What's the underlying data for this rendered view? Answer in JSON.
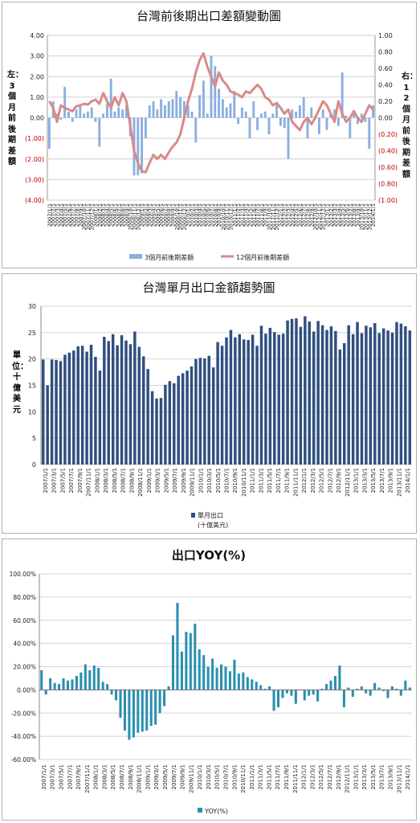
{
  "chart_data": [
    {
      "type": "bar+line",
      "title": "台灣前後期出口差額變動圖",
      "left_axis_label": "左：3個月前後期差額",
      "right_axis_label": "右：12個月前後期差額",
      "left_ylim": [
        -4,
        4
      ],
      "right_ylim": [
        -1,
        1
      ],
      "left_ticks": [
        "4.00",
        "3.00",
        "2.00",
        "1.00",
        "0.00",
        "(1.00)",
        "(2.00)",
        "(3.00)",
        "(4.00)"
      ],
      "right_ticks": [
        "1.00",
        "0.80",
        "0.60",
        "0.40",
        "0.20",
        "0.00",
        "(0.20)",
        "(0.40)",
        "(0.60)",
        "(0.80)",
        "(1.00)"
      ],
      "grid": true,
      "legend_position": "bottom",
      "series": [
        {
          "name": "3個月前後期差額",
          "kind": "bar",
          "color": "#8aaee0",
          "axis": "left",
          "values": [
            -1.5,
            0.8,
            0.2,
            -0.1,
            1.5,
            0.3,
            -0.2,
            0.4,
            0.6,
            0.2,
            0.3,
            0.5,
            -0.2,
            -1.4,
            0.2,
            0.7,
            1.9,
            0.3,
            0.5,
            0.4,
            0.6,
            -0.9,
            -2.8,
            -2.8,
            -2.7,
            -1.0,
            0.6,
            0.8,
            0.4,
            0.9,
            0.6,
            0.8,
            0.9,
            1.3,
            1.0,
            0.8,
            0.6,
            0.3,
            -1.2,
            1.1,
            1.8,
            0.2,
            3.0,
            2.5,
            1.4,
            0.9,
            0.5,
            0.7,
            1.3,
            -0.3,
            0.5,
            0.3,
            -1.0,
            0.8,
            -0.6,
            0.2,
            0.3,
            -0.8,
            0.2,
            0.7,
            -0.4,
            -0.5,
            -2.0,
            0.4,
            0.3,
            0.6,
            1.0,
            -1.0,
            0.5,
            0.1,
            -0.8,
            0.4,
            -0.6,
            0.2,
            0.4,
            -0.4,
            2.2,
            0.1,
            -1.0,
            0.3,
            -0.3,
            0.2,
            -0.2,
            -1.5,
            0.6
          ]
        },
        {
          "name": "12個月前後期差額",
          "kind": "line",
          "color": "#d98a88",
          "axis": "right",
          "values": [
            0.2,
            0.12,
            -0.05,
            0.15,
            0.12,
            0.1,
            0.08,
            0.14,
            0.15,
            0.17,
            0.16,
            0.2,
            0.22,
            0.17,
            0.3,
            0.2,
            0.12,
            0.25,
            0.15,
            0.3,
            0.2,
            -0.1,
            -0.4,
            -0.55,
            -0.65,
            -0.66,
            -0.55,
            -0.45,
            -0.5,
            -0.45,
            -0.5,
            -0.42,
            -0.35,
            -0.3,
            -0.2,
            0.0,
            0.2,
            0.35,
            0.55,
            0.7,
            0.78,
            0.62,
            0.5,
            0.38,
            0.55,
            0.45,
            0.4,
            0.32,
            0.3,
            0.28,
            0.25,
            0.32,
            0.3,
            0.35,
            0.4,
            0.35,
            0.25,
            0.22,
            0.15,
            0.18,
            0.12,
            0.05,
            0.1,
            -0.05,
            -0.1,
            -0.15,
            -0.05,
            0.0,
            -0.08,
            0.0,
            0.1,
            0.2,
            0.15,
            0.05,
            -0.05,
            0.2,
            0.05,
            -0.05,
            0.0,
            0.08,
            0.0,
            -0.05,
            0.05,
            0.15,
            0.1
          ]
        }
      ],
      "x_tick_labels": [
        "2007/1/1",
        "2007/2/1",
        "2007/3/1",
        "2007/4/1",
        "2007/5/1",
        "2007/6/1",
        "2007/7/1",
        "2007/8/1",
        "2007/9/1",
        "2007/10/1",
        "2007/11/1",
        "2007/12/1",
        "2008/1/1",
        "2008/2/1",
        "2008/3/1",
        "2008/4/1",
        "2008/5/1",
        "2008/6/1",
        "2008/7/1",
        "2008/8/1",
        "2008/9/1",
        "2008/10/1",
        "2008/11/1",
        "2008/12/1",
        "2009/1/1",
        "2009/2/1",
        "2009/3/1",
        "2009/4/1",
        "2009/5/1",
        "2009/6/1",
        "2009/7/1",
        "2009/8/1",
        "2009/9/1",
        "2009/10/1",
        "2009/11/1",
        "2009/12/1",
        "2010/1/1",
        "2010/2/1",
        "2010/3/1",
        "2010/4/1",
        "2010/5/1",
        "2010/6/1",
        "2010/7/1",
        "2010/8/1",
        "2010/9/1",
        "2010/10/1",
        "2010/11/1",
        "2010/12/1",
        "2011/1/1",
        "2011/2/1",
        "2011/3/1",
        "2011/4/1",
        "2011/5/1",
        "2011/6/1",
        "2011/7/1",
        "2011/8/1",
        "2011/9/1",
        "2011/10/1",
        "2011/11/1",
        "2011/12/1",
        "2012/1/1",
        "2012/2/1",
        "2012/3/1",
        "2012/4/1",
        "2012/5/1",
        "2012/6/1",
        "2012/7/1",
        "2012/8/1",
        "2012/9/1",
        "2012/10/1",
        "2012/11/1",
        "2012/12/1",
        "2013/1/1",
        "2013/2/1",
        "2013/3/1",
        "2013/4/1",
        "2013/5/1",
        "2013/6/1",
        "2013/7/1",
        "2013/8/1",
        "2013/9/1",
        "2013/10/1",
        "2013/11/1",
        "2013/12/1",
        "2014/1/1"
      ]
    },
    {
      "type": "bar",
      "title": "台灣單月出口金額趨勢圖",
      "ylabel": "單位：十億美元",
      "ylim": [
        0,
        30
      ],
      "y_ticks": [
        "30",
        "25",
        "20",
        "15",
        "10",
        "5",
        "0"
      ],
      "grid": true,
      "legend_position": "bottom",
      "series": [
        {
          "name": "單月出口",
          "name2": "(十億美元)",
          "color": "#2f4f7f",
          "values": [
            19.9,
            15.0,
            19.9,
            19.8,
            19.6,
            20.8,
            21.2,
            21.6,
            22.4,
            22.5,
            21.4,
            22.7,
            20.4,
            17.8,
            24.2,
            23.4,
            24.7,
            22.6,
            24.5,
            23.5,
            22.8,
            25.2,
            22.3,
            20.5,
            18.1,
            13.9,
            12.5,
            12.6,
            15.1,
            15.8,
            15.4,
            16.8,
            17.3,
            17.8,
            18.6,
            20.0,
            20.2,
            20.1,
            20.6,
            18.4,
            23.2,
            22.5,
            24.1,
            25.5,
            24.1,
            24.7,
            23.7,
            23.6,
            24.6,
            22.5,
            26.3,
            24.8,
            25.9,
            25.1,
            24.6,
            24.8,
            27.3,
            27.6,
            27.7,
            26.1,
            28.1,
            27.1,
            25.2,
            27.2,
            26.4,
            25.5,
            26.2,
            25.3,
            21.8,
            23.0,
            26.4,
            24.7,
            27.0,
            24.9,
            26.3,
            26.0,
            26.8,
            24.9,
            25.8,
            25.4,
            25.0,
            27.0,
            26.7,
            26.2,
            25.4
          ]
        }
      ],
      "x_tick_labels": [
        "2007/1/1",
        "2007/3/1",
        "2007/5/1",
        "2007/7/1",
        "2007/9/1",
        "2007/11/1",
        "2008/1/1",
        "2008/3/1",
        "2008/5/1",
        "2008/7/1",
        "2008/9/1",
        "2008/11/1",
        "2009/1/1",
        "2009/3/1",
        "2009/5/1",
        "2009/7/1",
        "2009/9/1",
        "2009/11/1",
        "2010/1/1",
        "2010/3/1",
        "2010/5/1",
        "2010/7/1",
        "2010/9/1",
        "2010/11/1",
        "2011/1/1",
        "2011/3/1",
        "2011/5/1",
        "2011/7/1",
        "2011/9/1",
        "2011/11/1",
        "2012/1/1",
        "2012/3/1",
        "2012/5/1",
        "2012/7/1",
        "2012/9/1",
        "2012/11/1",
        "2013/1/1",
        "2013/3/1",
        "2013/5/1",
        "2013/7/1",
        "2013/9/1",
        "2013/11/1",
        "2014/1/1"
      ]
    },
    {
      "type": "bar",
      "title": "出口YOY(%)",
      "ylim": [
        -60,
        100
      ],
      "y_ticks": [
        "100.00%",
        "80.00%",
        "60.00%",
        "40.00%",
        "20.00%",
        "0.00%",
        "-20.00%",
        "-40.00%",
        "-60.00%"
      ],
      "grid": true,
      "legend_position": "bottom",
      "series": [
        {
          "name": "YOY(%)",
          "color": "#2a8fb0",
          "values": [
            17,
            -4,
            10,
            6,
            5,
            10,
            8,
            9,
            12,
            15,
            22,
            17,
            21,
            19,
            7,
            5,
            -4,
            -9,
            -24,
            -35,
            -43,
            -41,
            -37,
            -36,
            -35,
            -31,
            -30,
            -20,
            -14,
            3,
            47,
            75,
            33,
            50,
            49,
            57,
            35,
            30,
            20,
            27,
            19,
            22,
            20,
            16,
            26,
            14,
            15,
            11,
            9,
            7,
            4,
            1,
            3,
            -18,
            -15,
            -7,
            -3,
            -5,
            -12,
            0,
            -9,
            -5,
            -4,
            -10,
            1,
            5,
            8,
            12,
            21,
            -15,
            2,
            -6,
            1,
            3,
            -3,
            -5,
            6,
            2,
            -1,
            -7,
            3,
            1,
            -5,
            8,
            2
          ]
        }
      ],
      "x_tick_labels": [
        "2007/1/1",
        "2007/3/1",
        "2007/5/1",
        "2007/7/1",
        "2007/9/1",
        "2007/11/1",
        "2008/1/1",
        "2008/3/1",
        "2008/5/1",
        "2008/7/1",
        "2008/9/1",
        "2008/11/1",
        "2009/1/1",
        "2009/3/1",
        "2009/5/1",
        "2009/7/1",
        "2009/9/1",
        "2009/11/1",
        "2010/1/1",
        "2010/3/1",
        "2010/5/1",
        "2010/7/1",
        "2010/9/1",
        "2010/11/1",
        "2011/1/1",
        "2011/3/1",
        "2011/5/1",
        "2011/7/1",
        "2011/9/1",
        "2011/11/1",
        "2012/1/1",
        "2012/3/1",
        "2012/5/1",
        "2012/7/1",
        "2012/9/1",
        "2012/11/1",
        "2013/1/1",
        "2013/3/1",
        "2013/5/1",
        "2013/7/1",
        "2013/9/1",
        "2013/11/1",
        "2014/1/1"
      ]
    }
  ]
}
